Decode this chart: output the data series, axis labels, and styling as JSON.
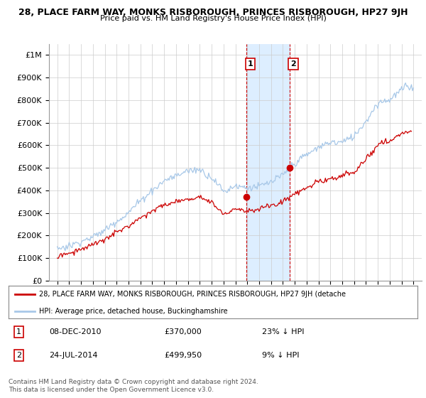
{
  "title": "28, PLACE FARM WAY, MONKS RISBOROUGH, PRINCES RISBOROUGH, HP27 9JH",
  "subtitle": "Price paid vs. HM Land Registry's House Price Index (HPI)",
  "sale1_date": "08-DEC-2010",
  "sale1_price": 370000,
  "sale1_label": "23% ↓ HPI",
  "sale2_date": "24-JUL-2014",
  "sale2_price": 499950,
  "sale2_label": "9% ↓ HPI",
  "legend_line1": "28, PLACE FARM WAY, MONKS RISBOROUGH, PRINCES RISBOROUGH, HP27 9JH (detache",
  "legend_line2": "HPI: Average price, detached house, Buckinghamshire",
  "footer": "Contains HM Land Registry data © Crown copyright and database right 2024.\nThis data is licensed under the Open Government Licence v3.0.",
  "hpi_color": "#a8c8e8",
  "property_color": "#cc0000",
  "shade_color": "#ddeeff",
  "ylim": [
    0,
    1050000
  ],
  "yticks": [
    0,
    100000,
    200000,
    300000,
    400000,
    500000,
    600000,
    700000,
    800000,
    900000,
    1000000
  ],
  "ytick_labels": [
    "£0",
    "£100K",
    "£200K",
    "£300K",
    "£400K",
    "£500K",
    "£600K",
    "£700K",
    "£800K",
    "£900K",
    "£1M"
  ],
  "sale1_year": 2010.92,
  "sale2_year": 2014.55,
  "xlim_left": 1994.3,
  "xlim_right": 2025.7
}
